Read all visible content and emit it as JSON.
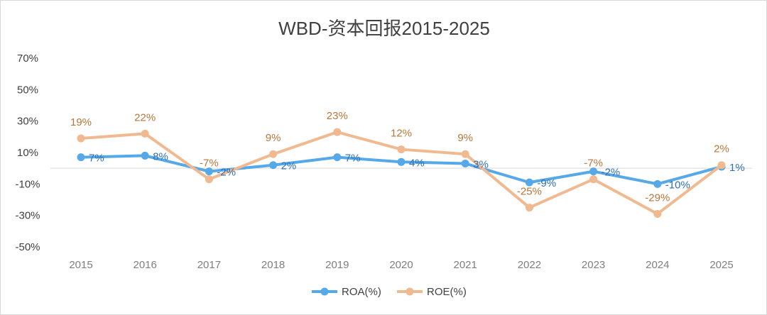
{
  "chart_data": {
    "type": "line",
    "title": "WBD-资本回报2015-2025",
    "categories": [
      "2015",
      "2016",
      "2017",
      "2018",
      "2019",
      "2020",
      "2021",
      "2022",
      "2023",
      "2024",
      "2025"
    ],
    "y_ticks": [
      "70%",
      "50%",
      "30%",
      "10%",
      "-10%",
      "-30%",
      "-50%"
    ],
    "ylim": [
      -50,
      70
    ],
    "series": [
      {
        "name": "ROA(%)",
        "color": "#56a9e8",
        "label_color": "#2e6fb5",
        "values": [
          7,
          8,
          -2,
          2,
          7,
          4,
          3,
          -9,
          -2,
          -10,
          1
        ],
        "labels": [
          "7%",
          "8%",
          "-2%",
          "2%",
          "7%",
          "4%",
          "3%",
          "-9%",
          "-2%",
          "-10%",
          "1%"
        ]
      },
      {
        "name": "ROE(%)",
        "color": "#f0b98f",
        "label_color": "#b8753a",
        "values": [
          19,
          22,
          -7,
          9,
          23,
          12,
          9,
          -25,
          -7,
          -29,
          2
        ],
        "labels": [
          "19%",
          "22%",
          "-7%",
          "9%",
          "23%",
          "12%",
          "9%",
          "-25%",
          "-7%",
          "-29%",
          "2%"
        ]
      }
    ],
    "legend": "bottom"
  }
}
